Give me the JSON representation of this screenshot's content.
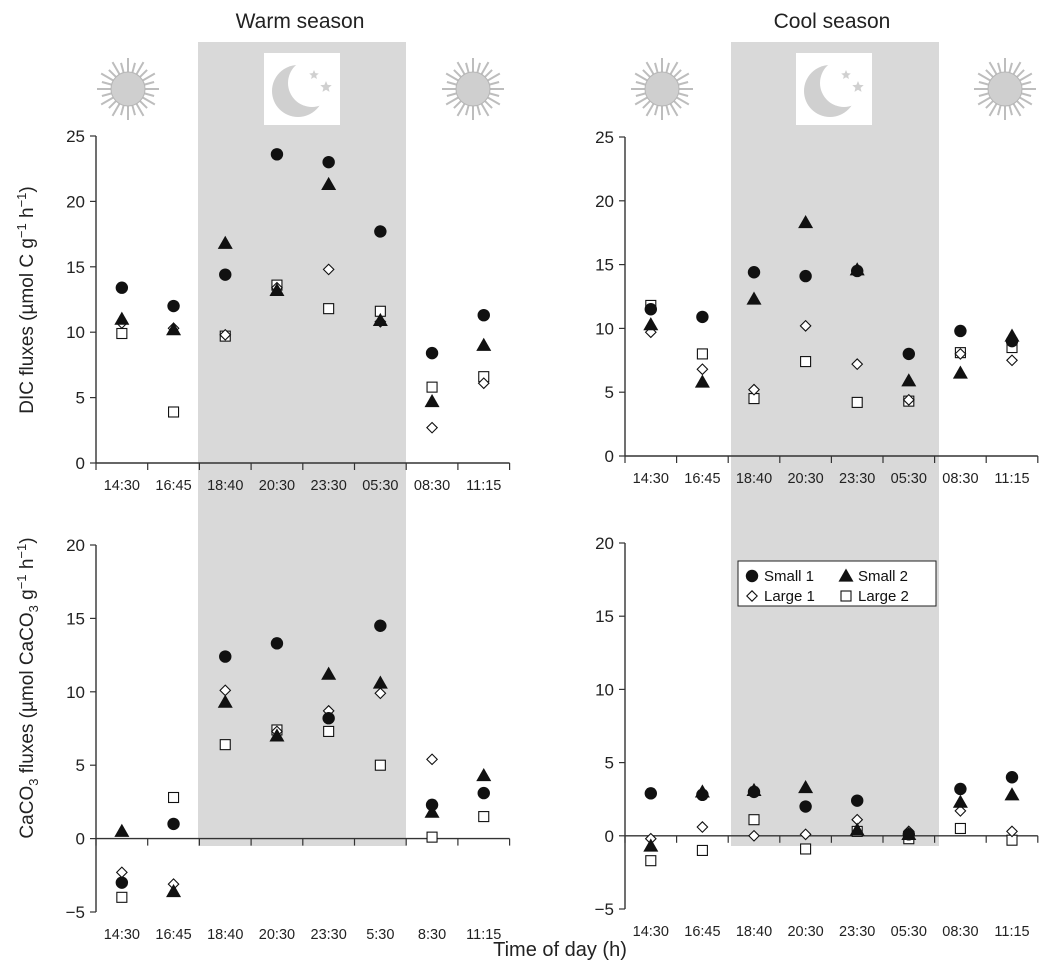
{
  "figure": {
    "titles": {
      "warm": "Warm season",
      "cool": "Cool season"
    },
    "xlabel": "Time of day (h)",
    "legend": [
      {
        "marker": "circle",
        "label": "Small 1"
      },
      {
        "marker": "triangle",
        "label": "Small 2"
      },
      {
        "marker": "diamond",
        "label": "Large 1"
      },
      {
        "marker": "square",
        "label": "Large 2"
      }
    ],
    "colors": {
      "night_band": "#d9d9d9",
      "marker": "#111111",
      "sun": "#bdbdbd",
      "moon": "#d0d0d0"
    },
    "icons": [
      "sun-icon",
      "moon-icon",
      "sun-icon"
    ]
  },
  "chart_data": [
    {
      "type": "scatter",
      "panel": "warm-dic",
      "ylabel": "DIC fluxes (µmol C g⁻¹ h⁻¹)",
      "categories": [
        "14:30",
        "16:45",
        "18:40",
        "20:30",
        "23:30",
        "05:30",
        "08:30",
        "11:15"
      ],
      "ylim": [
        0,
        25
      ],
      "yticks": [
        0,
        5,
        10,
        15,
        20,
        25
      ],
      "night_categories": [
        "18:40",
        "20:30",
        "23:30",
        "05:30"
      ],
      "series": [
        {
          "name": "Small 1",
          "marker": "circle",
          "values": [
            13.4,
            12.0,
            14.4,
            23.6,
            23.0,
            17.7,
            8.4,
            11.3
          ]
        },
        {
          "name": "Small 2",
          "marker": "triangle",
          "values": [
            11.0,
            10.2,
            16.8,
            13.2,
            21.3,
            10.9,
            4.7,
            9.0
          ]
        },
        {
          "name": "Large 1",
          "marker": "diamond",
          "values": [
            10.7,
            10.3,
            9.8,
            13.4,
            14.8,
            10.8,
            2.7,
            6.1
          ]
        },
        {
          "name": "Large 2",
          "marker": "square",
          "values": [
            9.9,
            3.9,
            9.7,
            13.6,
            11.8,
            11.6,
            5.8,
            6.6
          ]
        }
      ]
    },
    {
      "type": "scatter",
      "panel": "cool-dic",
      "ylabel": "",
      "categories": [
        "14:30",
        "16:45",
        "18:40",
        "20:30",
        "23:30",
        "05:30",
        "08:30",
        "11:15"
      ],
      "ylim": [
        0,
        25
      ],
      "yticks": [
        0,
        5,
        10,
        15,
        20,
        25
      ],
      "night_categories": [
        "18:40",
        "20:30",
        "23:30",
        "05:30"
      ],
      "series": [
        {
          "name": "Small 1",
          "marker": "circle",
          "values": [
            11.5,
            10.9,
            14.4,
            14.1,
            14.5,
            8.0,
            9.8,
            9.0
          ]
        },
        {
          "name": "Small 2",
          "marker": "triangle",
          "values": [
            10.3,
            5.8,
            12.3,
            18.3,
            14.6,
            5.9,
            6.5,
            9.4
          ]
        },
        {
          "name": "Large 1",
          "marker": "diamond",
          "values": [
            9.7,
            6.8,
            5.2,
            10.2,
            7.2,
            4.4,
            8.0,
            7.5
          ]
        },
        {
          "name": "Large 2",
          "marker": "square",
          "values": [
            11.8,
            8.0,
            4.5,
            7.4,
            4.2,
            4.3,
            8.1,
            8.5
          ]
        }
      ]
    },
    {
      "type": "scatter",
      "panel": "warm-caco3",
      "ylabel": "CaCO₃ fluxes (µmol CaCO₃ g⁻¹ h⁻¹)",
      "categories": [
        "14:30",
        "16:45",
        "18:40",
        "20:30",
        "23:30",
        "5:30",
        "8:30",
        "11:15"
      ],
      "ylim": [
        -5,
        20
      ],
      "yticks": [
        -5,
        0,
        5,
        10,
        15,
        20
      ],
      "night_categories": [
        "18:40",
        "20:30",
        "23:30",
        "5:30"
      ],
      "series": [
        {
          "name": "Small 1",
          "marker": "circle",
          "values": [
            -3.0,
            1.0,
            12.4,
            13.3,
            8.2,
            14.5,
            2.3,
            3.1
          ]
        },
        {
          "name": "Small 2",
          "marker": "triangle",
          "values": [
            0.5,
            -3.6,
            9.3,
            7.0,
            11.2,
            10.6,
            1.8,
            4.3
          ]
        },
        {
          "name": "Large 1",
          "marker": "diamond",
          "values": [
            -2.3,
            -3.1,
            10.1,
            7.3,
            8.7,
            9.9,
            5.4,
            3.1
          ]
        },
        {
          "name": "Large 2",
          "marker": "square",
          "values": [
            -4.0,
            2.8,
            6.4,
            7.4,
            7.3,
            5.0,
            0.1,
            1.5
          ]
        }
      ]
    },
    {
      "type": "scatter",
      "panel": "cool-caco3",
      "ylabel": "",
      "categories": [
        "14:30",
        "16:45",
        "18:40",
        "20:30",
        "23:30",
        "05:30",
        "08:30",
        "11:15"
      ],
      "ylim": [
        -5,
        20
      ],
      "yticks": [
        -5,
        0,
        5,
        10,
        15,
        20
      ],
      "night_categories": [
        "18:40",
        "20:30",
        "23:30",
        "05:30"
      ],
      "series": [
        {
          "name": "Small 1",
          "marker": "circle",
          "values": [
            2.9,
            2.8,
            3.0,
            2.0,
            2.4,
            0.1,
            3.2,
            4.0
          ]
        },
        {
          "name": "Small 2",
          "marker": "triangle",
          "values": [
            -0.7,
            3.0,
            3.1,
            3.3,
            0.4,
            0.1,
            2.3,
            2.8
          ]
        },
        {
          "name": "Large 1",
          "marker": "diamond",
          "values": [
            -0.2,
            0.6,
            0.0,
            0.1,
            1.1,
            0.3,
            1.7,
            0.3
          ]
        },
        {
          "name": "Large 2",
          "marker": "square",
          "values": [
            -1.7,
            -1.0,
            1.1,
            -0.9,
            0.3,
            -0.2,
            0.5,
            -0.3
          ]
        }
      ]
    }
  ]
}
